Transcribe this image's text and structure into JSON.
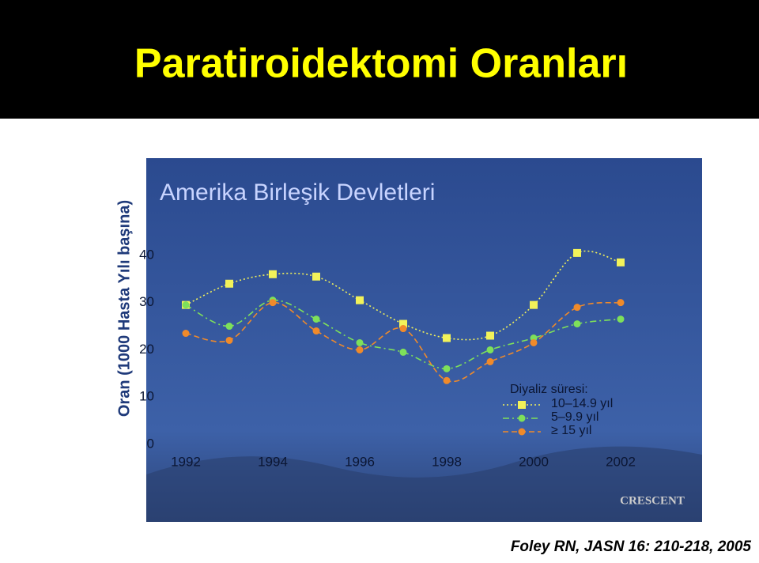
{
  "title": "Paratiroidektomi Oranları",
  "chart_data": {
    "type": "line",
    "title": "Amerika Birleşik Devletleri",
    "y_label": "Oran (1000 Hasta Yılı başına)",
    "x": [
      1992,
      1993,
      1994,
      1995,
      1996,
      1997,
      1998,
      1999,
      2000,
      2001,
      2002
    ],
    "xlim": [
      1992,
      2002
    ],
    "xticks": [
      1992,
      1994,
      1996,
      1998,
      2000,
      2002
    ],
    "ylim": [
      0,
      45
    ],
    "yticks": [
      0,
      10,
      20,
      30,
      40
    ],
    "legend_title": "Diyaliz süresi:",
    "series": [
      {
        "name": "10–14.9 yıl",
        "color": "#f2f25a",
        "marker": "square",
        "dash": "2,3",
        "values": [
          29.5,
          34,
          36,
          35.5,
          30.5,
          25.5,
          22.5,
          23,
          29.5,
          40.5,
          38.5
        ]
      },
      {
        "name": "5–9.9 yıl",
        "color": "#7ee05a",
        "marker": "circle",
        "dash": "8,4,2,4",
        "values": [
          29.5,
          25,
          30.5,
          26.5,
          21.5,
          19.5,
          16,
          20,
          22.5,
          25.5,
          26.5
        ]
      },
      {
        "name": "≥ 15 yıl",
        "color": "#f08a2a",
        "marker": "circle",
        "dash": "7,4",
        "values": [
          23.5,
          22,
          30,
          24,
          20,
          24.5,
          13.5,
          17.5,
          21.5,
          29,
          30
        ]
      }
    ]
  },
  "logo": "CRESCENT",
  "citation": "Foley RN, JASN 16: 210-218, 2005"
}
